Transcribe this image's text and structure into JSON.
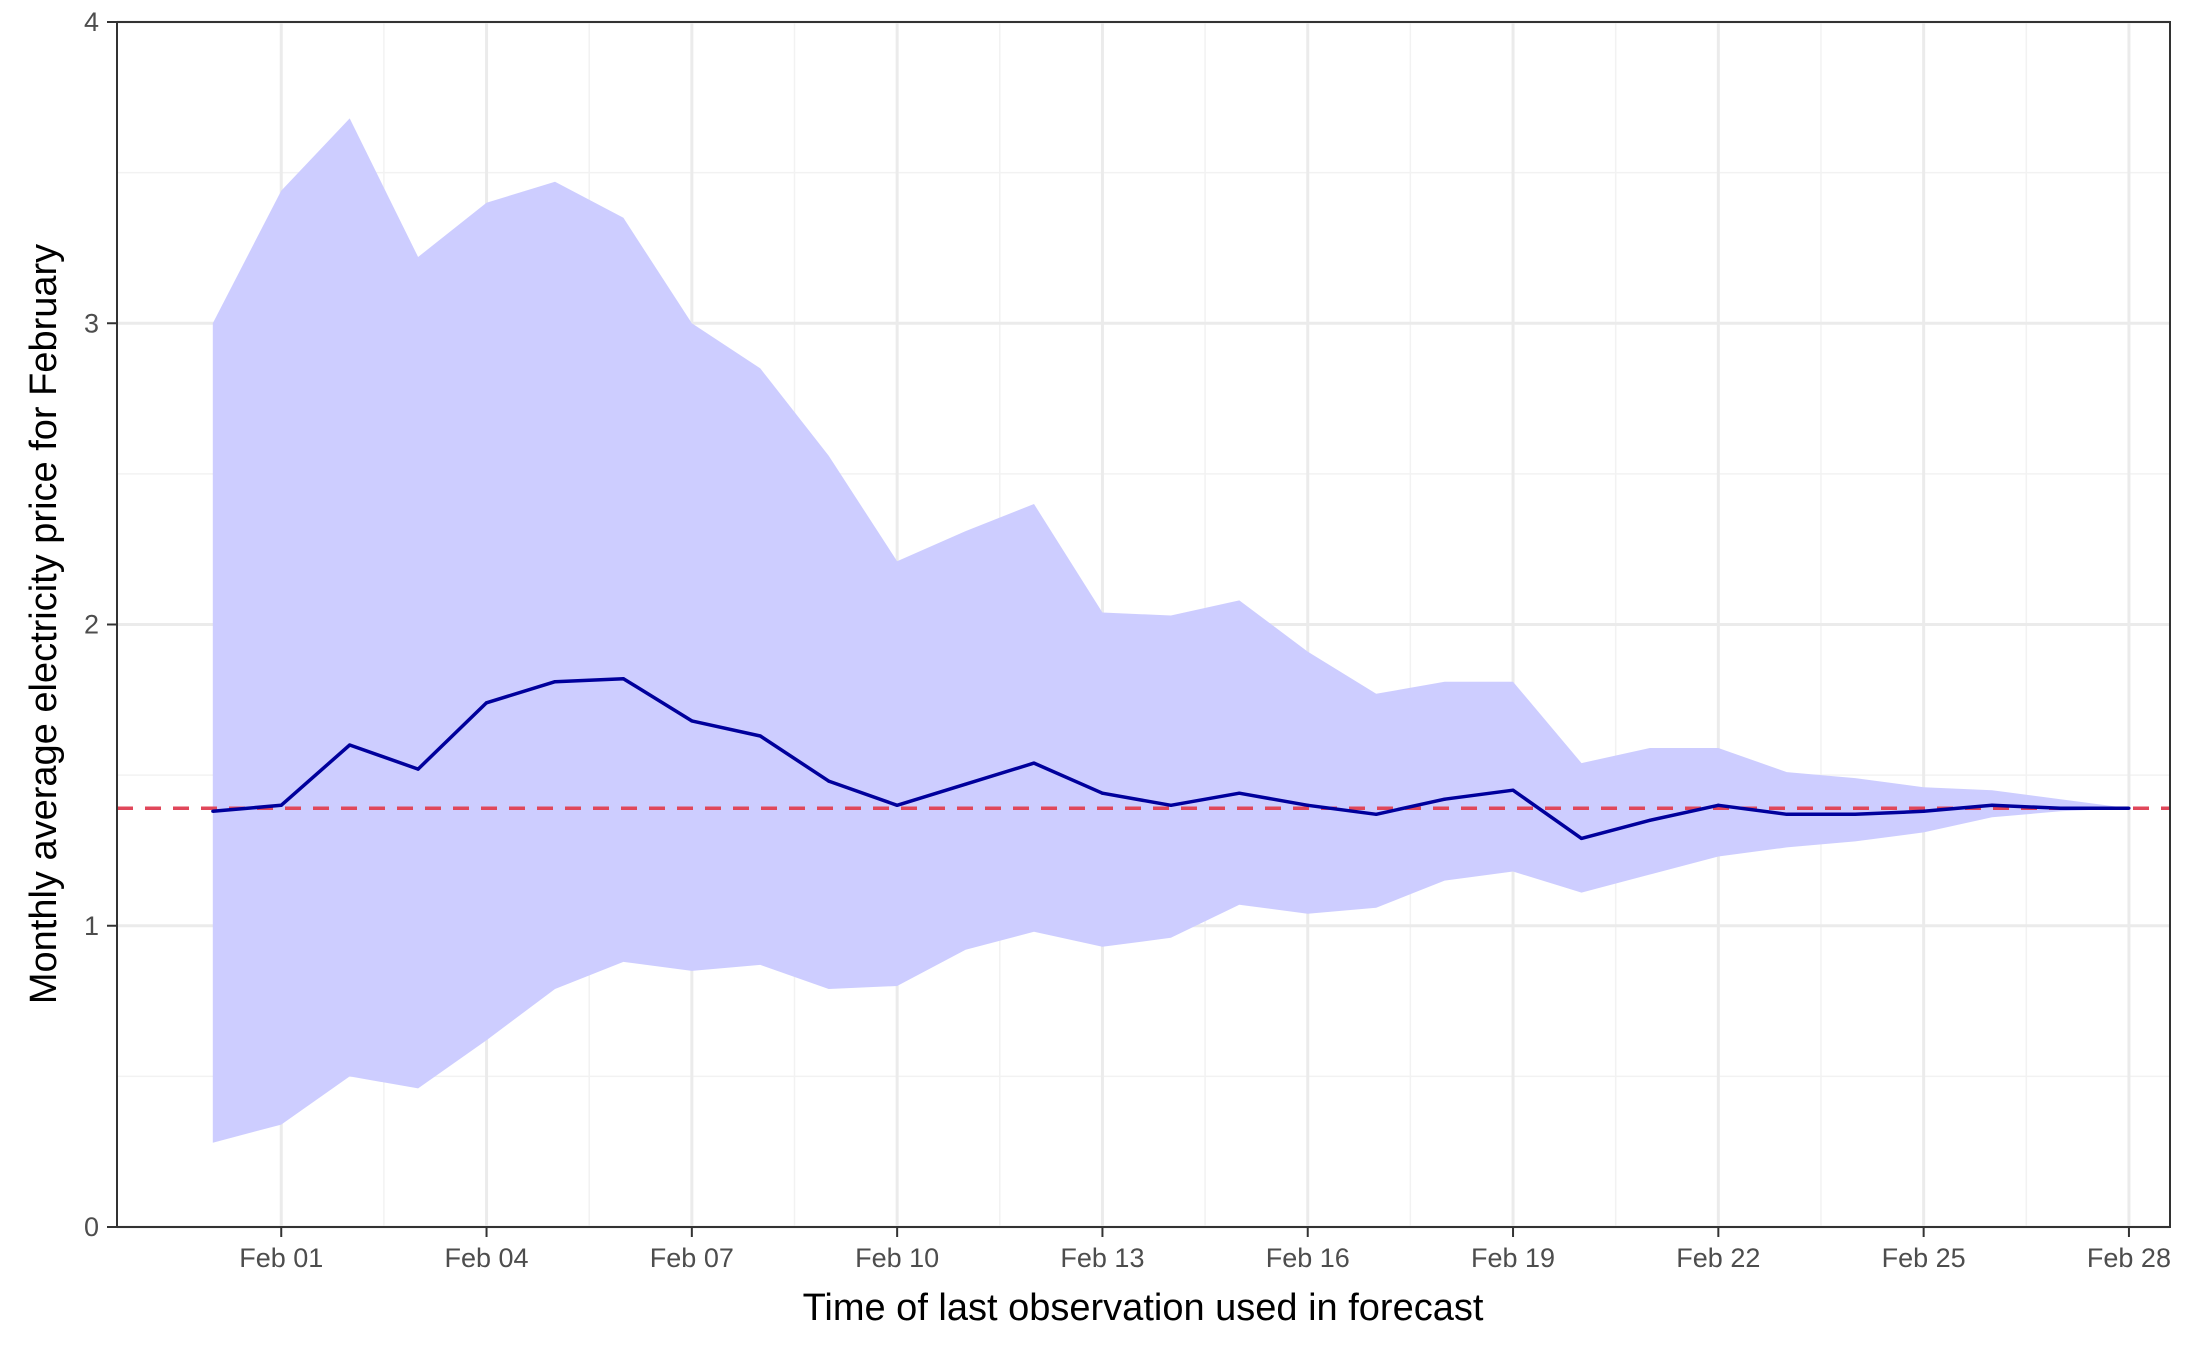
{
  "chart_data": {
    "type": "line",
    "title": "",
    "xlabel": "Time of last observation used in forecast",
    "ylabel": "Monthly average electricity price for February",
    "x": [
      "Jan 31",
      "Feb 01",
      "Feb 02",
      "Feb 03",
      "Feb 04",
      "Feb 05",
      "Feb 06",
      "Feb 07",
      "Feb 08",
      "Feb 09",
      "Feb 10",
      "Feb 11",
      "Feb 12",
      "Feb 13",
      "Feb 14",
      "Feb 15",
      "Feb 16",
      "Feb 17",
      "Feb 18",
      "Feb 19",
      "Feb 20",
      "Feb 21",
      "Feb 22",
      "Feb 23",
      "Feb 24",
      "Feb 25",
      "Feb 26",
      "Feb 27",
      "Feb 28"
    ],
    "x_ticks": [
      "Feb 01",
      "Feb 04",
      "Feb 07",
      "Feb 10",
      "Feb 13",
      "Feb 16",
      "Feb 19",
      "Feb 22",
      "Feb 25",
      "Feb 28"
    ],
    "xlim": [
      "Jan 29.6",
      "Feb 28.6"
    ],
    "y_ticks": [
      "0",
      "1",
      "2",
      "3",
      "4"
    ],
    "ylim": [
      0,
      4
    ],
    "grid": true,
    "legend": "none",
    "series": [
      {
        "type": "line",
        "color": "#00009c",
        "values": [
          1.38,
          1.4,
          1.6,
          1.52,
          1.74,
          1.81,
          1.82,
          1.68,
          1.63,
          1.48,
          1.4,
          1.47,
          1.54,
          1.44,
          1.4,
          1.44,
          1.4,
          1.37,
          1.42,
          1.45,
          1.29,
          1.35,
          1.4,
          1.37,
          1.37,
          1.38,
          1.4,
          1.39,
          1.39
        ]
      },
      {
        "type": "band",
        "color": "#ccccff",
        "upper": [
          3.0,
          3.44,
          3.68,
          3.22,
          3.4,
          3.47,
          3.35,
          3.0,
          2.85,
          2.56,
          2.21,
          2.31,
          2.4,
          2.04,
          2.03,
          2.08,
          1.91,
          1.77,
          1.81,
          1.81,
          1.54,
          1.59,
          1.59,
          1.51,
          1.49,
          1.46,
          1.45,
          1.42,
          1.39
        ],
        "lower": [
          0.28,
          0.34,
          0.5,
          0.46,
          0.62,
          0.79,
          0.88,
          0.85,
          0.87,
          0.79,
          0.8,
          0.92,
          0.98,
          0.93,
          0.96,
          1.07,
          1.04,
          1.06,
          1.15,
          1.18,
          1.11,
          1.17,
          1.23,
          1.26,
          1.28,
          1.31,
          1.36,
          1.38,
          1.39
        ]
      },
      {
        "type": "hline",
        "color": "#e0475a",
        "style": "dashed",
        "value": 1.39
      }
    ]
  }
}
